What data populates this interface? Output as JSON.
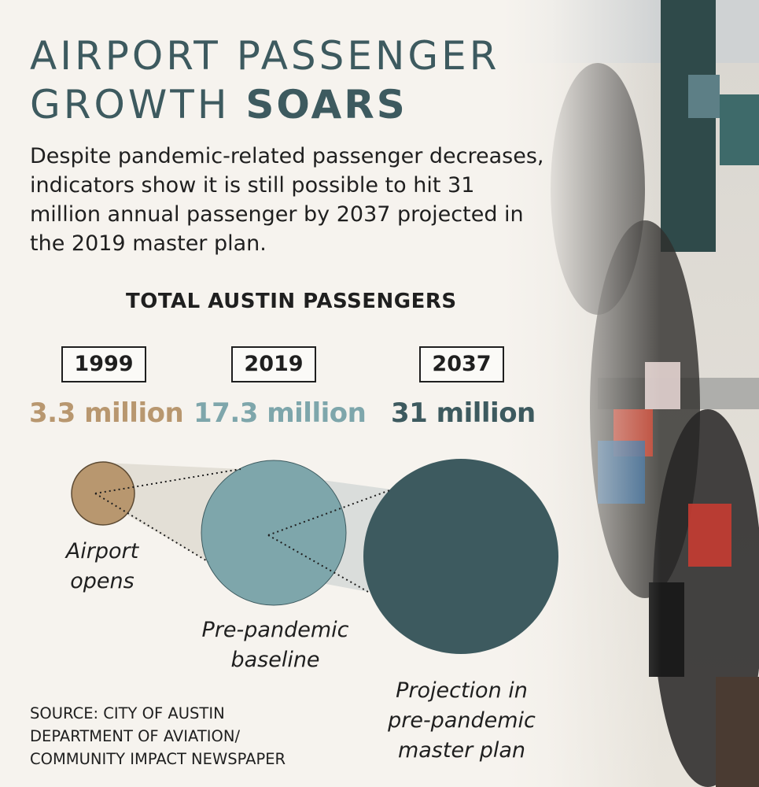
{
  "title": {
    "line1": "AIRPORT PASSENGER",
    "line2_regular": "GROWTH",
    "line2_bold": "SOARS"
  },
  "subtitle": "Despite pandemic-related passenger decreases, indicators show it is still possible to hit 31 million annual passenger by 2037 projected in the 2019 master plan.",
  "chart_data": {
    "type": "bubble",
    "title": "TOTAL AUSTIN PASSENGERS",
    "unit": "million annual passengers",
    "points": [
      {
        "year": "1999",
        "value": 3.3,
        "value_label": "3.3 million",
        "note": "Airport opens",
        "color": "#b8976f"
      },
      {
        "year": "2019",
        "value": 17.3,
        "value_label": "17.3 million",
        "note": "Pre-pandemic baseline",
        "color": "#7ea6ab"
      },
      {
        "year": "2037",
        "value": 31,
        "value_label": "31 million",
        "note": "Projection in pre-pandemic master plan",
        "color": "#3d5a5f"
      }
    ]
  },
  "source": [
    "SOURCE: CITY OF AUSTIN",
    "DEPARTMENT OF AVIATION/",
    "COMMUNITY IMPACT NEWSPAPER"
  ],
  "colors": {
    "title": "#3d5a5f",
    "background": "#f6f3ee"
  }
}
